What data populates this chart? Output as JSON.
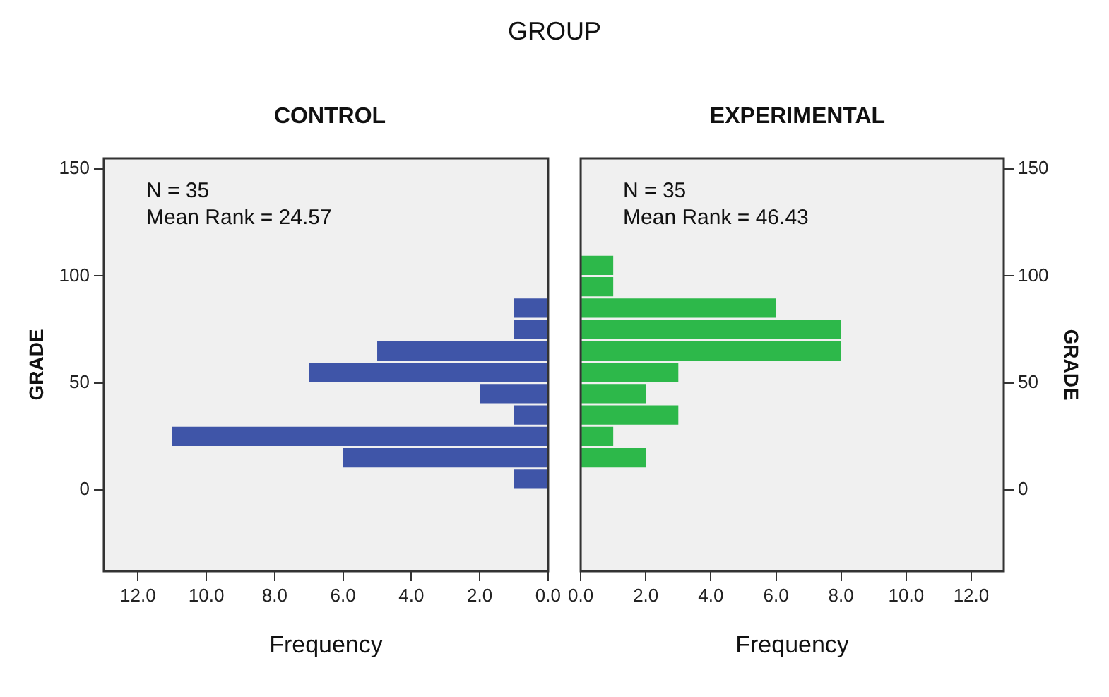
{
  "chart_data": [
    {
      "type": "histogram",
      "title": "GROUP",
      "subtitle": "CONTROL",
      "orientation": "horizontal",
      "bins": [
        0,
        10,
        20,
        30,
        40,
        50,
        60,
        70,
        80,
        90
      ],
      "values": [
        1,
        6,
        11,
        1,
        2,
        7,
        5,
        1,
        1
      ],
      "color": "#3f55a8",
      "xlim": [
        13,
        0
      ],
      "xticks": [
        {
          "value": 12,
          "label": "12.0"
        },
        {
          "value": 10,
          "label": "10.0"
        },
        {
          "value": 8,
          "label": "8.0"
        },
        {
          "value": 6,
          "label": "6.0"
        },
        {
          "value": 4,
          "label": "4.0"
        },
        {
          "value": 2,
          "label": "2.0"
        },
        {
          "value": 0,
          "label": "0.0"
        }
      ],
      "ylim": [
        -38,
        155
      ],
      "yticks": [
        0,
        50,
        100,
        150
      ],
      "xlabel": "Frequency",
      "ylabel": "GRADE",
      "annotations": [
        "N = 35",
        "Mean Rank = 24.57"
      ]
    },
    {
      "type": "histogram",
      "subtitle": "EXPERIMENTAL",
      "orientation": "horizontal",
      "bins": [
        10,
        20,
        30,
        40,
        50,
        60,
        70,
        80,
        90,
        100,
        110
      ],
      "values": [
        2,
        1,
        3,
        2,
        3,
        8,
        8,
        6,
        1,
        1
      ],
      "color": "#2db84a",
      "xlim": [
        0,
        13
      ],
      "xticks": [
        {
          "value": 0,
          "label": "0.0"
        },
        {
          "value": 2,
          "label": "2.0"
        },
        {
          "value": 4,
          "label": "4.0"
        },
        {
          "value": 6,
          "label": "6.0"
        },
        {
          "value": 8,
          "label": "8.0"
        },
        {
          "value": 10,
          "label": "10.0"
        },
        {
          "value": 12,
          "label": "12.0"
        }
      ],
      "ylim": [
        -38,
        155
      ],
      "yticks": [
        0,
        50,
        100,
        150
      ],
      "xlabel": "Frequency",
      "ylabel": "GRADE",
      "annotations": [
        "N = 35",
        "Mean Rank = 46.43"
      ]
    }
  ]
}
